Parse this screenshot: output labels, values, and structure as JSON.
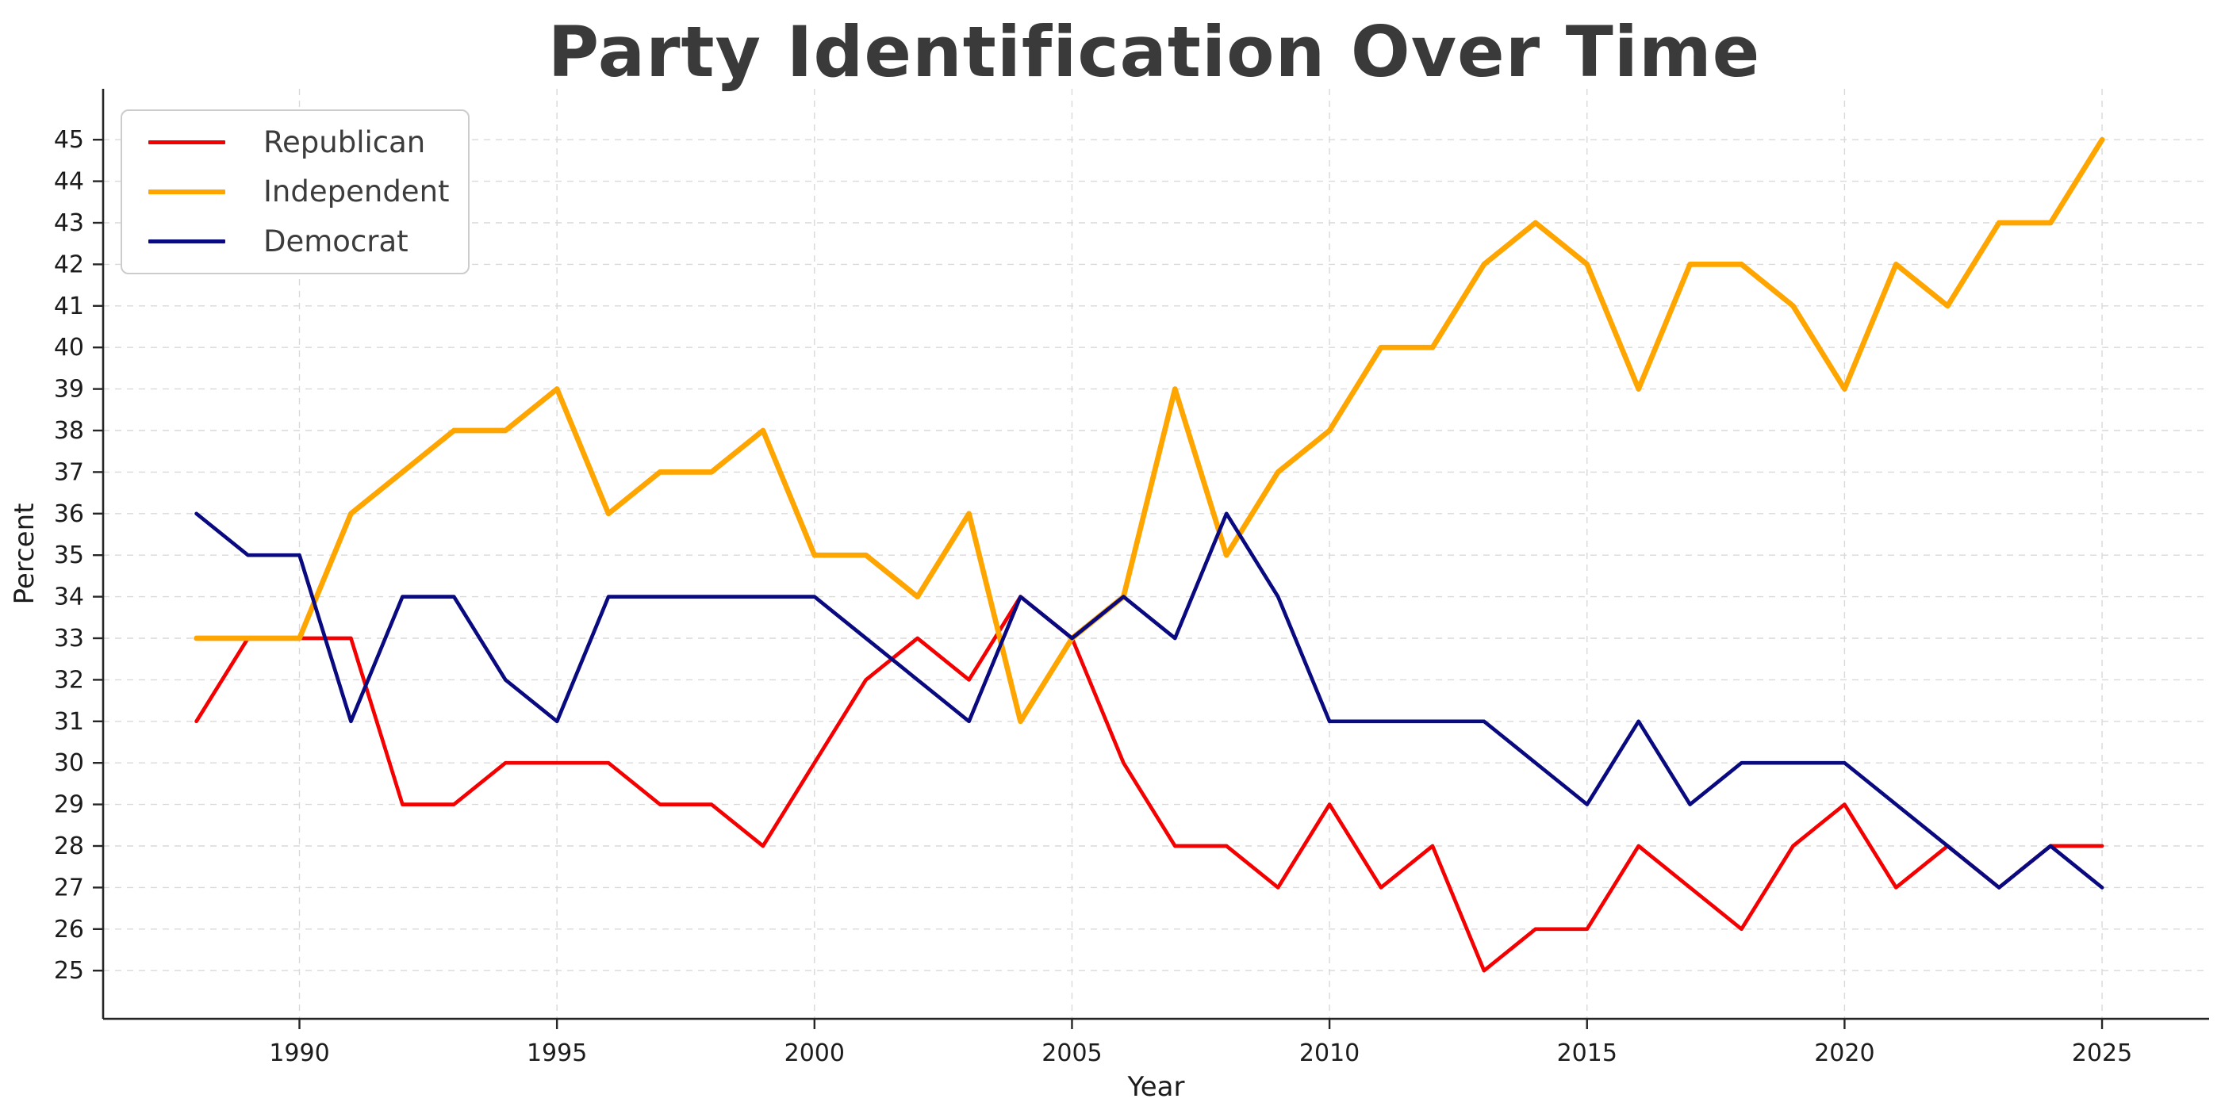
{
  "title": "Party Identification Over Time",
  "chart_data": {
    "type": "line",
    "title": "Party Identification Over Time",
    "xlabel": "Year",
    "ylabel": "Percent",
    "grid": true,
    "legend_position": "upper left",
    "x": [
      1988,
      1989,
      1990,
      1991,
      1992,
      1993,
      1994,
      1995,
      1996,
      1997,
      1998,
      1999,
      2000,
      2001,
      2002,
      2003,
      2004,
      2005,
      2006,
      2007,
      2008,
      2009,
      2010,
      2011,
      2012,
      2013,
      2014,
      2015,
      2016,
      2017,
      2018,
      2019,
      2020,
      2021,
      2022,
      2023,
      2024,
      2025
    ],
    "series": [
      {
        "name": "Republican",
        "color": "#f40000",
        "values": [
          31,
          33,
          33,
          33,
          29,
          29,
          30,
          30,
          30,
          29,
          29,
          28,
          30,
          32,
          33,
          32,
          34,
          33,
          30,
          28,
          28,
          27,
          29,
          27,
          28,
          25,
          26,
          26,
          28,
          27,
          26,
          28,
          29,
          27,
          28,
          27,
          28,
          28
        ]
      },
      {
        "name": "Independent",
        "color": "#ffa500",
        "values": [
          33,
          33,
          33,
          36,
          37,
          38,
          38,
          39,
          36,
          37,
          37,
          38,
          35,
          35,
          34,
          36,
          31,
          33,
          34,
          39,
          35,
          37,
          38,
          40,
          40,
          42,
          43,
          42,
          39,
          42,
          42,
          41,
          39,
          42,
          41,
          43,
          43,
          45
        ]
      },
      {
        "name": "Democrat",
        "color": "#0a0a80",
        "values": [
          36,
          35,
          35,
          31,
          34,
          34,
          32,
          31,
          34,
          34,
          34,
          34,
          34,
          33,
          32,
          31,
          34,
          33,
          34,
          33,
          36,
          34,
          31,
          31,
          31,
          31,
          30,
          29,
          31,
          29,
          30,
          30,
          30,
          29,
          28,
          27,
          28,
          27
        ]
      }
    ],
    "x_ticks": [
      1990,
      1995,
      2000,
      2005,
      2010,
      2015,
      2020,
      2025
    ],
    "y_ticks": [
      25,
      26,
      27,
      28,
      29,
      30,
      31,
      32,
      33,
      34,
      35,
      36,
      37,
      38,
      39,
      40,
      41,
      42,
      43,
      44,
      45
    ],
    "xlim": [
      1986.2,
      2026.9
    ],
    "ylim": [
      23.8,
      46.2
    ]
  },
  "style_colors": {
    "grid": "#d9d9d9",
    "spine": "#262626",
    "tick_label": "#1c1c1c",
    "axis_label": "#1c1c1c",
    "title": "#3a3a3a"
  }
}
